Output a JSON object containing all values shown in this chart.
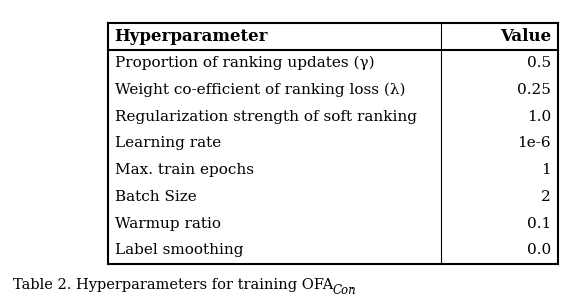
{
  "headers": [
    "Hyperparameter",
    "Value"
  ],
  "rows": [
    [
      "Proportion of ranking updates (γ)",
      "0.5"
    ],
    [
      "Weight co-efficient of ranking loss (λ)",
      "0.25"
    ],
    [
      "Regularization strength of soft ranking",
      "1.0"
    ],
    [
      "Learning rate",
      "1e-6"
    ],
    [
      "Max. train epochs",
      "1"
    ],
    [
      "Batch Size",
      "2"
    ],
    [
      "Warmup ratio",
      "0.1"
    ],
    [
      "Label smoothing",
      "0.0"
    ]
  ],
  "caption": "Table 2. Hyperparameters for training OFA",
  "caption_sub": "Con",
  "caption_end": ".",
  "header_bg": "#ffffff",
  "bg_color": "#ffffff",
  "text_color": "#000000",
  "header_fontsize": 12,
  "body_fontsize": 11,
  "caption_fontsize": 10.5,
  "figsize": [
    5.64,
    3.08
  ],
  "dpi": 100
}
